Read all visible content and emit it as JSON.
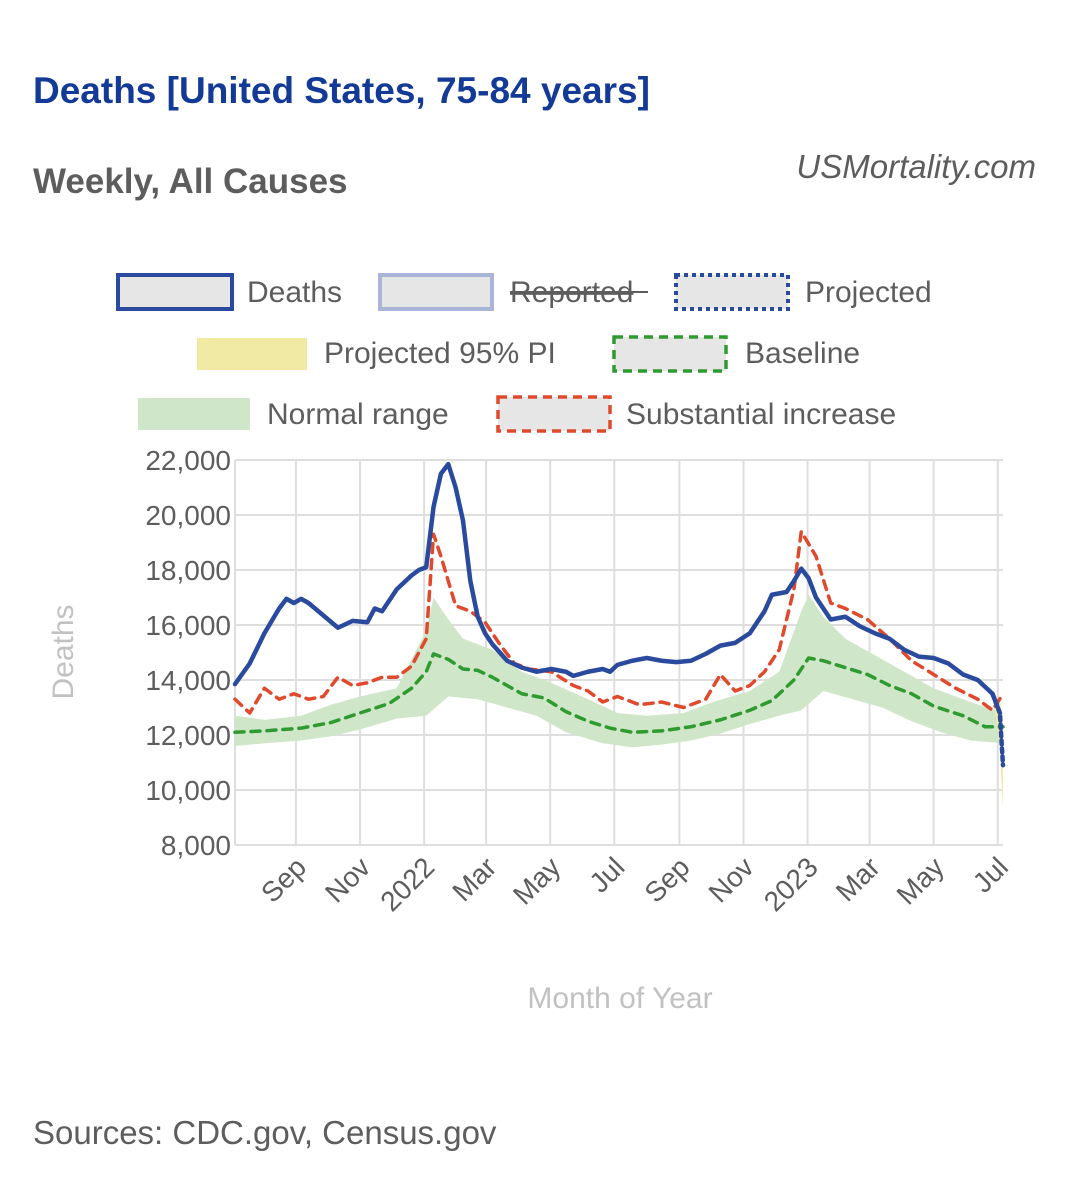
{
  "header": {
    "title": "Deaths [United States, 75-84 years]",
    "subtitle": "Weekly, All Causes",
    "brand": "USMortality.com"
  },
  "footer": {
    "source": "Sources: CDC.gov, Census.gov"
  },
  "colors": {
    "deaths": "#2a4a9e",
    "reported": "#a9b4d8",
    "projected": "#2a4a9e",
    "pi": "#f0eaa5",
    "baseline": "#2f9a2f",
    "normal_range": "#cfe6c8",
    "substantial": "#e0492b",
    "grid": "#dedede",
    "box": "#e6e6e6"
  },
  "chart_data": {
    "type": "line",
    "title": "Deaths [United States, 75-84 years]",
    "subtitle": "Weekly, All Causes",
    "xlabel": "Month of Year",
    "ylabel": "Deaths",
    "ylim": [
      8000,
      22000
    ],
    "y_ticks": [
      "22,000",
      "20,000",
      "18,000",
      "16,000",
      "14,000",
      "12,000",
      "10,000",
      "8,000"
    ],
    "x_ticks": [
      {
        "label": "Sep",
        "date": "2021-09-01"
      },
      {
        "label": "Nov",
        "date": "2021-11-01"
      },
      {
        "label": "2022",
        "date": "2022-01-01"
      },
      {
        "label": "Mar",
        "date": "2022-03-01"
      },
      {
        "label": "May",
        "date": "2022-05-01"
      },
      {
        "label": "Jul",
        "date": "2022-07-01"
      },
      {
        "label": "Sep",
        "date": "2022-09-01"
      },
      {
        "label": "Nov",
        "date": "2022-11-01"
      },
      {
        "label": "2023",
        "date": "2023-01-01"
      },
      {
        "label": "Mar",
        "date": "2023-03-01"
      },
      {
        "label": "May",
        "date": "2023-05-01"
      },
      {
        "label": "Jul",
        "date": "2023-07-01"
      }
    ],
    "grid": true,
    "legend_position": "top",
    "legend": [
      {
        "label": "Deaths",
        "key": "deaths"
      },
      {
        "label": "Reported",
        "key": "reported",
        "hidden": true
      },
      {
        "label": "Projected",
        "key": "projected"
      },
      {
        "label": "Projected 95% PI",
        "key": "pi"
      },
      {
        "label": "Baseline",
        "key": "baseline"
      },
      {
        "label": "Normal range",
        "key": "normal_range"
      },
      {
        "label": "Substantial increase",
        "key": "substantial"
      }
    ],
    "series": [
      {
        "name": "Deaths",
        "points": [
          [
            "2021-07-05",
            13850
          ],
          [
            "2021-07-19",
            14600
          ],
          [
            "2021-08-02",
            15700
          ],
          [
            "2021-08-16",
            16600
          ],
          [
            "2021-08-23",
            16950
          ],
          [
            "2021-08-30",
            16800
          ],
          [
            "2021-09-06",
            16950
          ],
          [
            "2021-09-13",
            16800
          ],
          [
            "2021-09-27",
            16350
          ],
          [
            "2021-10-11",
            15900
          ],
          [
            "2021-10-25",
            16150
          ],
          [
            "2021-11-08",
            16100
          ],
          [
            "2021-11-15",
            16600
          ],
          [
            "2021-11-22",
            16500
          ],
          [
            "2021-12-06",
            17300
          ],
          [
            "2021-12-20",
            17800
          ],
          [
            "2021-12-27",
            18000
          ],
          [
            "2022-01-03",
            18100
          ],
          [
            "2022-01-10",
            20300
          ],
          [
            "2022-01-17",
            21500
          ],
          [
            "2022-01-24",
            21850
          ],
          [
            "2022-01-31",
            21000
          ],
          [
            "2022-02-07",
            19800
          ],
          [
            "2022-02-14",
            17600
          ],
          [
            "2022-02-21",
            16300
          ],
          [
            "2022-02-28",
            15700
          ],
          [
            "2022-03-07",
            15300
          ],
          [
            "2022-03-21",
            14700
          ],
          [
            "2022-04-04",
            14450
          ],
          [
            "2022-04-18",
            14300
          ],
          [
            "2022-05-02",
            14400
          ],
          [
            "2022-05-16",
            14300
          ],
          [
            "2022-05-23",
            14150
          ],
          [
            "2022-06-06",
            14300
          ],
          [
            "2022-06-20",
            14400
          ],
          [
            "2022-06-27",
            14300
          ],
          [
            "2022-07-04",
            14550
          ],
          [
            "2022-07-18",
            14700
          ],
          [
            "2022-08-01",
            14800
          ],
          [
            "2022-08-15",
            14700
          ],
          [
            "2022-08-29",
            14650
          ],
          [
            "2022-09-12",
            14700
          ],
          [
            "2022-09-26",
            14950
          ],
          [
            "2022-10-10",
            15250
          ],
          [
            "2022-10-24",
            15350
          ],
          [
            "2022-11-07",
            15700
          ],
          [
            "2022-11-21",
            16500
          ],
          [
            "2022-11-28",
            17100
          ],
          [
            "2022-12-12",
            17200
          ],
          [
            "2022-12-19",
            17600
          ],
          [
            "2022-12-26",
            18050
          ],
          [
            "2023-01-02",
            17700
          ],
          [
            "2023-01-09",
            17000
          ],
          [
            "2023-01-23",
            16200
          ],
          [
            "2023-02-06",
            16300
          ],
          [
            "2023-02-20",
            15950
          ],
          [
            "2023-03-06",
            15700
          ],
          [
            "2023-03-20",
            15500
          ],
          [
            "2023-04-03",
            15100
          ],
          [
            "2023-04-17",
            14850
          ],
          [
            "2023-05-01",
            14800
          ],
          [
            "2023-05-15",
            14600
          ],
          [
            "2023-05-29",
            14200
          ],
          [
            "2023-06-12",
            14000
          ],
          [
            "2023-06-26",
            13500
          ],
          [
            "2023-07-03",
            12800
          ]
        ]
      },
      {
        "name": "Projected",
        "points": [
          [
            "2023-06-26",
            13500
          ],
          [
            "2023-07-03",
            12800
          ],
          [
            "2023-07-06",
            10900
          ]
        ]
      },
      {
        "name": "Baseline",
        "points": [
          [
            "2021-07-05",
            12100
          ],
          [
            "2021-08-02",
            12150
          ],
          [
            "2021-09-06",
            12250
          ],
          [
            "2021-10-04",
            12450
          ],
          [
            "2021-11-01",
            12800
          ],
          [
            "2021-11-29",
            13150
          ],
          [
            "2021-12-20",
            13700
          ],
          [
            "2022-01-03",
            14300
          ],
          [
            "2022-01-10",
            14950
          ],
          [
            "2022-01-24",
            14750
          ],
          [
            "2022-02-07",
            14400
          ],
          [
            "2022-02-21",
            14350
          ],
          [
            "2022-03-07",
            14100
          ],
          [
            "2022-03-21",
            13800
          ],
          [
            "2022-04-04",
            13500
          ],
          [
            "2022-04-25",
            13350
          ],
          [
            "2022-05-16",
            12850
          ],
          [
            "2022-06-06",
            12500
          ],
          [
            "2022-06-27",
            12250
          ],
          [
            "2022-07-18",
            12100
          ],
          [
            "2022-08-15",
            12150
          ],
          [
            "2022-09-12",
            12300
          ],
          [
            "2022-10-10",
            12550
          ],
          [
            "2022-11-07",
            12900
          ],
          [
            "2022-11-28",
            13250
          ],
          [
            "2022-12-19",
            14000
          ],
          [
            "2023-01-02",
            14800
          ],
          [
            "2023-01-16",
            14700
          ],
          [
            "2023-02-06",
            14450
          ],
          [
            "2023-02-27",
            14200
          ],
          [
            "2023-03-20",
            13800
          ],
          [
            "2023-04-10",
            13500
          ],
          [
            "2023-05-01",
            13050
          ],
          [
            "2023-05-29",
            12700
          ],
          [
            "2023-06-19",
            12300
          ],
          [
            "2023-07-06",
            12300
          ]
        ]
      },
      {
        "name": "Substantial increase",
        "points": [
          [
            "2021-07-05",
            13300
          ],
          [
            "2021-07-19",
            12800
          ],
          [
            "2021-08-02",
            13700
          ],
          [
            "2021-08-16",
            13300
          ],
          [
            "2021-08-30",
            13500
          ],
          [
            "2021-09-13",
            13300
          ],
          [
            "2021-09-27",
            13400
          ],
          [
            "2021-10-11",
            14100
          ],
          [
            "2021-10-25",
            13800
          ],
          [
            "2021-11-08",
            13900
          ],
          [
            "2021-11-22",
            14100
          ],
          [
            "2021-12-06",
            14100
          ],
          [
            "2021-12-20",
            14500
          ],
          [
            "2022-01-03",
            15500
          ],
          [
            "2022-01-10",
            19300
          ],
          [
            "2022-01-17",
            18500
          ],
          [
            "2022-01-31",
            16700
          ],
          [
            "2022-02-14",
            16500
          ],
          [
            "2022-02-28",
            16100
          ],
          [
            "2022-03-14",
            15300
          ],
          [
            "2022-03-28",
            14600
          ],
          [
            "2022-04-11",
            14400
          ],
          [
            "2022-05-02",
            14300
          ],
          [
            "2022-05-23",
            13800
          ],
          [
            "2022-06-06",
            13600
          ],
          [
            "2022-06-20",
            13200
          ],
          [
            "2022-07-04",
            13400
          ],
          [
            "2022-07-25",
            13100
          ],
          [
            "2022-08-15",
            13200
          ],
          [
            "2022-09-05",
            13000
          ],
          [
            "2022-09-26",
            13300
          ],
          [
            "2022-10-10",
            14200
          ],
          [
            "2022-10-24",
            13600
          ],
          [
            "2022-11-07",
            13800
          ],
          [
            "2022-11-21",
            14300
          ],
          [
            "2022-12-05",
            15100
          ],
          [
            "2022-12-19",
            17300
          ],
          [
            "2022-12-26",
            19400
          ],
          [
            "2023-01-09",
            18500
          ],
          [
            "2023-01-23",
            16800
          ],
          [
            "2023-02-06",
            16600
          ],
          [
            "2023-02-27",
            16200
          ],
          [
            "2023-03-20",
            15500
          ],
          [
            "2023-04-10",
            14700
          ],
          [
            "2023-05-01",
            14200
          ],
          [
            "2023-05-22",
            13700
          ],
          [
            "2023-06-12",
            13300
          ],
          [
            "2023-06-26",
            12900
          ],
          [
            "2023-07-06",
            13500
          ]
        ]
      },
      {
        "name": "Normal range",
        "upper": [
          [
            "2021-07-05",
            12700
          ],
          [
            "2021-08-02",
            12550
          ],
          [
            "2021-09-06",
            12700
          ],
          [
            "2021-10-04",
            13100
          ],
          [
            "2021-11-01",
            13400
          ],
          [
            "2021-12-06",
            13700
          ],
          [
            "2022-01-03",
            15800
          ],
          [
            "2022-01-10",
            17000
          ],
          [
            "2022-01-24",
            16200
          ],
          [
            "2022-02-07",
            15500
          ],
          [
            "2022-03-07",
            15100
          ],
          [
            "2022-04-04",
            14300
          ],
          [
            "2022-05-02",
            13900
          ],
          [
            "2022-06-06",
            13300
          ],
          [
            "2022-07-04",
            12800
          ],
          [
            "2022-08-01",
            12700
          ],
          [
            "2022-09-05",
            12800
          ],
          [
            "2022-10-03",
            13200
          ],
          [
            "2022-11-07",
            13600
          ],
          [
            "2022-12-05",
            14300
          ],
          [
            "2022-12-26",
            16500
          ],
          [
            "2023-01-02",
            17100
          ],
          [
            "2023-01-16",
            16300
          ],
          [
            "2023-02-06",
            15500
          ],
          [
            "2023-03-06",
            14900
          ],
          [
            "2023-04-03",
            14300
          ],
          [
            "2023-05-01",
            13700
          ],
          [
            "2023-06-05",
            13200
          ],
          [
            "2023-07-06",
            12800
          ]
        ],
        "lower": [
          [
            "2021-07-05",
            11600
          ],
          [
            "2021-08-02",
            11700
          ],
          [
            "2021-09-06",
            11800
          ],
          [
            "2021-10-04",
            11950
          ],
          [
            "2021-11-01",
            12200
          ],
          [
            "2021-12-06",
            12600
          ],
          [
            "2022-01-03",
            12700
          ],
          [
            "2022-01-24",
            13400
          ],
          [
            "2022-02-21",
            13300
          ],
          [
            "2022-03-21",
            13000
          ],
          [
            "2022-04-18",
            12700
          ],
          [
            "2022-05-16",
            12100
          ],
          [
            "2022-06-20",
            11700
          ],
          [
            "2022-07-18",
            11550
          ],
          [
            "2022-08-15",
            11650
          ],
          [
            "2022-09-12",
            11800
          ],
          [
            "2022-10-10",
            12050
          ],
          [
            "2022-11-07",
            12400
          ],
          [
            "2022-12-05",
            12700
          ],
          [
            "2022-12-26",
            12900
          ],
          [
            "2023-01-16",
            13600
          ],
          [
            "2023-02-13",
            13300
          ],
          [
            "2023-03-13",
            13000
          ],
          [
            "2023-04-10",
            12500
          ],
          [
            "2023-05-08",
            12100
          ],
          [
            "2023-06-05",
            11800
          ],
          [
            "2023-07-06",
            11700
          ]
        ]
      },
      {
        "name": "Projected 95% PI",
        "upper": [
          [
            "2023-06-26",
            13500
          ],
          [
            "2023-07-03",
            13200
          ],
          [
            "2023-07-06",
            12600
          ]
        ],
        "lower": [
          [
            "2023-06-26",
            13500
          ],
          [
            "2023-07-03",
            11500
          ],
          [
            "2023-07-06",
            9300
          ]
        ]
      }
    ]
  }
}
